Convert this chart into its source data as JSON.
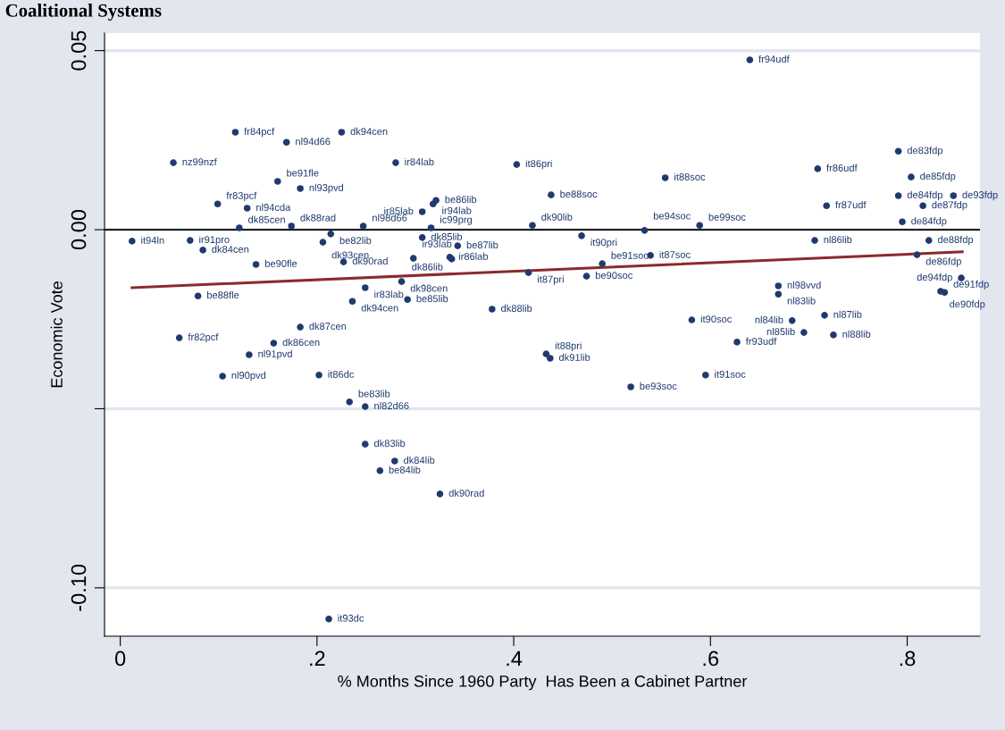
{
  "chart_data": {
    "type": "scatter",
    "title": "Coalitional Systems",
    "xlabel": "% Months Since 1960 Party  Has Been a Cabinet Partner",
    "ylabel": "Economic Vote",
    "xlim": [
      -0.016,
      0.874
    ],
    "ylim": [
      -0.1135,
      0.0549
    ],
    "xticks": [
      0,
      {
        "value": 0.2,
        "label": ".2"
      },
      {
        "value": 0.4,
        "label": ".4"
      },
      {
        "value": 0.6,
        "label": ".6"
      },
      {
        "value": 0.8,
        "label": ".8"
      }
    ],
    "yticks": [
      {
        "value": 0.05,
        "label": "0.05"
      },
      {
        "value": 0,
        "label": "0.00"
      },
      {
        "value": -0.05,
        "label": null
      },
      {
        "value": -0.1,
        "label": "-0.10"
      }
    ],
    "grid": "y",
    "marker": "circle",
    "ref_lines": [
      {
        "axis": "y",
        "value": 0,
        "color": "#000000"
      }
    ],
    "series": [
      {
        "color": "#1f3a6e",
        "x": [
          0.64,
          0.117,
          0.169,
          0.225,
          0.054,
          0.28,
          0.791,
          0.403,
          0.709,
          0.554,
          0.804,
          0.16,
          0.183,
          0.438,
          0.791,
          0.847,
          0.321,
          0.318,
          0.099,
          0.129,
          0.718,
          0.816,
          0.307,
          0.795,
          0.121,
          0.174,
          0.247,
          0.316,
          0.419,
          0.589,
          0.214,
          0.533,
          0.469,
          0.307,
          0.012,
          0.071,
          0.206,
          0.706,
          0.822,
          0.343,
          0.084,
          0.298,
          0.335,
          0.337,
          0.227,
          0.138,
          0.49,
          0.539,
          0.81,
          0.286,
          0.415,
          0.474,
          0.249,
          0.079,
          0.236,
          0.292,
          0.855,
          0.669,
          0.669,
          0.834,
          0.838,
          0.378,
          0.183,
          0.06,
          0.581,
          0.683,
          0.716,
          0.156,
          0.695,
          0.725,
          0.627,
          0.131,
          0.433,
          0.437,
          0.104,
          0.202,
          0.595,
          0.519,
          0.233,
          0.249,
          0.249,
          0.279,
          0.264,
          0.325,
          0.212
        ],
        "values": [
          0.0474,
          0.0272,
          0.0244,
          0.0272,
          0.0187,
          0.0187,
          0.0219,
          0.0182,
          0.017,
          0.0145,
          0.0147,
          0.0135,
          0.0115,
          0.0097,
          0.0095,
          0.0095,
          0.0082,
          0.0072,
          0.0072,
          0.006,
          0.0067,
          0.0067,
          0.005,
          0.0022,
          0.0005,
          0.001,
          0.001,
          0.0005,
          0.0012,
          0.0012,
          -0.0012,
          -0.0002,
          -0.0017,
          -0.0022,
          -0.0032,
          -0.003,
          -0.0035,
          -0.003,
          -0.003,
          -0.0045,
          -0.0057,
          -0.008,
          -0.0077,
          -0.0082,
          -0.009,
          -0.0097,
          -0.0095,
          -0.0072,
          -0.007,
          -0.0145,
          -0.012,
          -0.013,
          -0.0162,
          -0.0185,
          -0.02,
          -0.0195,
          -0.0135,
          -0.0157,
          -0.018,
          -0.0172,
          -0.0175,
          -0.0222,
          -0.0272,
          -0.0302,
          -0.0252,
          -0.0254,
          -0.0239,
          -0.0317,
          -0.0287,
          -0.0294,
          -0.0314,
          -0.0349,
          -0.0347,
          -0.0359,
          -0.0409,
          -0.0406,
          -0.0406,
          -0.0439,
          -0.0481,
          -0.0494,
          -0.0599,
          -0.0646,
          -0.0673,
          -0.0738,
          -0.1087
        ]
      },
      {
        "type": "line",
        "color": "#8b2a2e",
        "marker": "none",
        "line_style": "solid",
        "x": [
          0.012,
          0.856
        ],
        "values": [
          -0.0162,
          -0.0062
        ]
      }
    ],
    "annotations": [
      {
        "text": "fr94udf",
        "x": 0.64,
        "y": 0.0474
      },
      {
        "text": "fr84pcf",
        "x": 0.117,
        "y": 0.0272
      },
      {
        "text": "nl94d66",
        "x": 0.169,
        "y": 0.0244
      },
      {
        "text": "dk94cen",
        "x": 0.225,
        "y": 0.0272
      },
      {
        "text": "nz99nzf",
        "x": 0.054,
        "y": 0.0187
      },
      {
        "text": "ir84lab",
        "x": 0.28,
        "y": 0.0187
      },
      {
        "text": "de83fdp",
        "x": 0.791,
        "y": 0.0219
      },
      {
        "text": "it86pri",
        "x": 0.403,
        "y": 0.0182
      },
      {
        "text": "fr86udf",
        "x": 0.709,
        "y": 0.017
      },
      {
        "text": "it88soc",
        "x": 0.554,
        "y": 0.0145
      },
      {
        "text": "de85fdp",
        "x": 0.804,
        "y": 0.0147
      },
      {
        "text": "be91fle",
        "x": 0.16,
        "y": 0.0135
      },
      {
        "text": "nl93pvd",
        "x": 0.183,
        "y": 0.0115
      },
      {
        "text": "be88soc",
        "x": 0.438,
        "y": 0.0097
      },
      {
        "text": "de84fdp",
        "x": 0.791,
        "y": 0.0095
      },
      {
        "text": "de93fdp",
        "x": 0.847,
        "y": 0.0095
      },
      {
        "text": "be86lib",
        "x": 0.321,
        "y": 0.0082
      },
      {
        "text": "ir94lab",
        "x": 0.318,
        "y": 0.0072
      },
      {
        "text": "fr83pcf",
        "x": 0.099,
        "y": 0.0072
      },
      {
        "text": "nl94cda",
        "x": 0.129,
        "y": 0.006
      },
      {
        "text": "fr87udf",
        "x": 0.718,
        "y": 0.0067
      },
      {
        "text": "de87fdp",
        "x": 0.816,
        "y": 0.0067
      },
      {
        "text": "ir85lab",
        "x": 0.307,
        "y": 0.005
      },
      {
        "text": "de84fdp",
        "x": 0.795,
        "y": 0.0022
      },
      {
        "text": "dk85cen",
        "x": 0.121,
        "y": 0.0005
      },
      {
        "text": "dk88rad",
        "x": 0.174,
        "y": 0.001
      },
      {
        "text": "nl98d66",
        "x": 0.247,
        "y": 0.001
      },
      {
        "text": "ic99prg",
        "x": 0.316,
        "y": 0.0005
      },
      {
        "text": "dk90lib",
        "x": 0.419,
        "y": 0.0012
      },
      {
        "text": "be99soc",
        "x": 0.589,
        "y": 0.0012
      },
      {
        "text": "be82lib",
        "x": 0.214,
        "y": -0.0012
      },
      {
        "text": "be94soc",
        "x": 0.533,
        "y": -0.0002
      },
      {
        "text": "it90pri",
        "x": 0.469,
        "y": -0.0017
      },
      {
        "text": "dk85lib",
        "x": 0.307,
        "y": -0.0022
      },
      {
        "text": "it94ln",
        "x": 0.012,
        "y": -0.0032
      },
      {
        "text": "ir91pro",
        "x": 0.071,
        "y": -0.003
      },
      {
        "text": "dk93cen",
        "x": 0.206,
        "y": -0.0035
      },
      {
        "text": "nl86lib",
        "x": 0.706,
        "y": -0.003
      },
      {
        "text": "de88fdp",
        "x": 0.822,
        "y": -0.003
      },
      {
        "text": "be87lib",
        "x": 0.343,
        "y": -0.0045
      },
      {
        "text": "dk84cen",
        "x": 0.084,
        "y": -0.0057
      },
      {
        "text": "ir93lab",
        "x": 0.298,
        "y": -0.008
      },
      {
        "text": "ir86lab",
        "x": 0.335,
        "y": -0.0077
      },
      {
        "text": "dk86lib",
        "x": 0.337,
        "y": -0.0082
      },
      {
        "text": "dk90rad",
        "x": 0.227,
        "y": -0.009
      },
      {
        "text": "be90fle",
        "x": 0.138,
        "y": -0.0097
      },
      {
        "text": "be91soc",
        "x": 0.49,
        "y": -0.0095
      },
      {
        "text": "it87soc",
        "x": 0.539,
        "y": -0.0072
      },
      {
        "text": "de86fdp",
        "x": 0.81,
        "y": -0.007
      },
      {
        "text": "dk98cen",
        "x": 0.286,
        "y": -0.0145
      },
      {
        "text": "it87pri",
        "x": 0.415,
        "y": -0.012
      },
      {
        "text": "be90soc",
        "x": 0.474,
        "y": -0.013
      },
      {
        "text": "ir83lab",
        "x": 0.249,
        "y": -0.0162
      },
      {
        "text": "be88fle",
        "x": 0.079,
        "y": -0.0185
      },
      {
        "text": "dk94cen",
        "x": 0.236,
        "y": -0.02
      },
      {
        "text": "be85lib",
        "x": 0.292,
        "y": -0.0195
      },
      {
        "text": "de94fdp",
        "x": 0.855,
        "y": -0.0135
      },
      {
        "text": "nl98vvd",
        "x": 0.669,
        "y": -0.0157
      },
      {
        "text": "nl83lib",
        "x": 0.669,
        "y": -0.018
      },
      {
        "text": "de90fdp",
        "x": 0.834,
        "y": -0.0172
      },
      {
        "text": "de91fdp",
        "x": 0.838,
        "y": -0.0175
      },
      {
        "text": "dk88lib",
        "x": 0.378,
        "y": -0.0222
      },
      {
        "text": "dk87cen",
        "x": 0.183,
        "y": -0.0272
      },
      {
        "text": "fr82pcf",
        "x": 0.06,
        "y": -0.0302
      },
      {
        "text": "it90soc",
        "x": 0.581,
        "y": -0.0252
      },
      {
        "text": "nl84lib",
        "x": 0.683,
        "y": -0.0254
      },
      {
        "text": "nl87lib",
        "x": 0.716,
        "y": -0.0239
      },
      {
        "text": "dk86cen",
        "x": 0.156,
        "y": -0.0317
      },
      {
        "text": "nl85lib",
        "x": 0.695,
        "y": -0.0287
      },
      {
        "text": "nl88lib",
        "x": 0.725,
        "y": -0.0294
      },
      {
        "text": "fr93udf",
        "x": 0.627,
        "y": -0.0314
      },
      {
        "text": "nl91pvd",
        "x": 0.131,
        "y": -0.0349
      },
      {
        "text": "it88pri",
        "x": 0.433,
        "y": -0.0347
      },
      {
        "text": "dk91lib",
        "x": 0.437,
        "y": -0.0359
      },
      {
        "text": "nl90pvd",
        "x": 0.104,
        "y": -0.0409
      },
      {
        "text": "it86dc",
        "x": 0.202,
        "y": -0.0406
      },
      {
        "text": "it91soc",
        "x": 0.595,
        "y": -0.0406
      },
      {
        "text": "be93soc",
        "x": 0.519,
        "y": -0.0439
      },
      {
        "text": "be83lib",
        "x": 0.233,
        "y": -0.0481
      },
      {
        "text": "nl82d66",
        "x": 0.249,
        "y": -0.0494
      },
      {
        "text": "dk83lib",
        "x": 0.249,
        "y": -0.0599
      },
      {
        "text": "dk84lib",
        "x": 0.279,
        "y": -0.0646
      },
      {
        "text": "be84lib",
        "x": 0.264,
        "y": -0.0673
      },
      {
        "text": "dk90rad",
        "x": 0.325,
        "y": -0.0738
      },
      {
        "text": "it93dc",
        "x": 0.212,
        "y": -0.1087
      }
    ]
  }
}
